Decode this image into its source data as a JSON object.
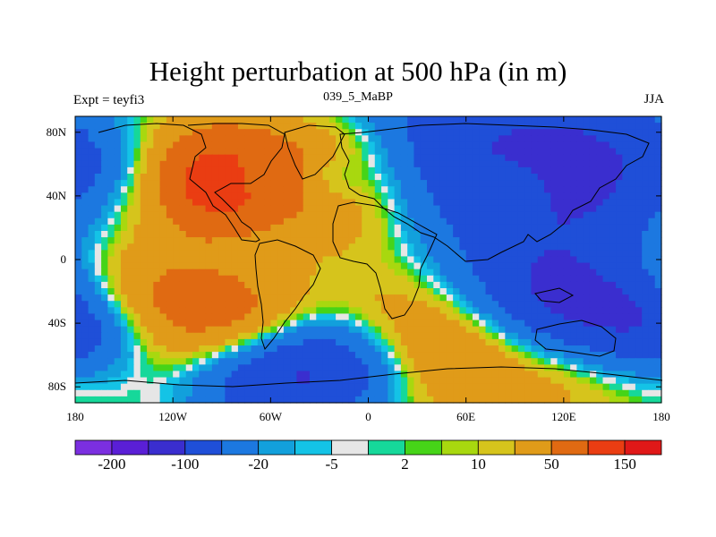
{
  "chart_data": {
    "type": "heatmap",
    "title": "Height perturbation at 500 hPa (in m)",
    "left_string": "Expt = teyfi3",
    "center_string": "039_5_MaBP",
    "right_string": "JJA",
    "x_ticks": [
      {
        "value": -180,
        "label": "180"
      },
      {
        "value": -120,
        "label": "120W"
      },
      {
        "value": -60,
        "label": "60W"
      },
      {
        "value": 0,
        "label": "0"
      },
      {
        "value": 60,
        "label": "60E"
      },
      {
        "value": 120,
        "label": "120E"
      },
      {
        "value": 180,
        "label": "180"
      }
    ],
    "y_ticks": [
      {
        "value": 80,
        "label": "80N"
      },
      {
        "value": 40,
        "label": "40N"
      },
      {
        "value": 0,
        "label": "0"
      },
      {
        "value": -40,
        "label": "40S"
      },
      {
        "value": -80,
        "label": "80S"
      }
    ],
    "xlim": [
      -180,
      180
    ],
    "ylim": [
      -90,
      90
    ],
    "colorbar": {
      "levels": [
        -200,
        -150,
        -100,
        -50,
        -20,
        -10,
        -5,
        -2,
        2,
        5,
        10,
        20,
        50,
        100,
        150,
        200
      ],
      "colors": [
        "#7b2fe0",
        "#5a1fd6",
        "#3a2ecf",
        "#1f4fd8",
        "#1c78e0",
        "#12a0dc",
        "#14c3e6",
        "#e6e6e6",
        "#16d89a",
        "#46d418",
        "#a8d80f",
        "#d6c41c",
        "#e09b19",
        "#e06a12",
        "#ea3d12",
        "#e01818"
      ],
      "labels": [
        {
          "value": -200,
          "text": "-200"
        },
        {
          "value": -100,
          "text": "-100"
        },
        {
          "value": -20,
          "text": "-20"
        },
        {
          "value": -5,
          "text": "-5"
        },
        {
          "value": 2,
          "text": "2"
        },
        {
          "value": 10,
          "text": "10"
        },
        {
          "value": 50,
          "text": "50"
        },
        {
          "value": 150,
          "text": "150"
        }
      ]
    },
    "anomaly_centers": [
      {
        "lon": -95,
        "lat": 62,
        "value": 60,
        "spread": 26
      },
      {
        "lon": -88,
        "lat": 45,
        "value": 80,
        "spread": 18
      },
      {
        "lon": -35,
        "lat": 50,
        "value": 45,
        "spread": 22
      },
      {
        "lon": -20,
        "lat": 62,
        "value": 35,
        "spread": 20
      },
      {
        "lon": 0,
        "lat": 30,
        "value": 30,
        "spread": 25
      },
      {
        "lon": -120,
        "lat": 25,
        "value": 12,
        "spread": 30
      },
      {
        "lon": -75,
        "lat": 50,
        "value": -40,
        "spread": 10
      },
      {
        "lon": -25,
        "lat": 52,
        "value": -60,
        "spread": 14
      },
      {
        "lon": -165,
        "lat": 62,
        "value": -18,
        "spread": 14
      },
      {
        "lon": 60,
        "lat": 72,
        "value": -70,
        "spread": 40
      },
      {
        "lon": 140,
        "lat": 60,
        "value": -80,
        "spread": 35
      },
      {
        "lon": 95,
        "lat": 46,
        "value": 25,
        "spread": 14
      },
      {
        "lon": 130,
        "lat": 25,
        "value": -25,
        "spread": 30
      },
      {
        "lon": 30,
        "lat": 10,
        "value": -18,
        "spread": 35
      },
      {
        "lon": -150,
        "lat": 0,
        "value": 6,
        "spread": 40
      },
      {
        "lon": -130,
        "lat": -30,
        "value": 50,
        "spread": 28
      },
      {
        "lon": -75,
        "lat": -40,
        "value": 70,
        "spread": 22
      },
      {
        "lon": -165,
        "lat": -50,
        "value": -40,
        "spread": 18
      },
      {
        "lon": -60,
        "lat": -70,
        "value": -100,
        "spread": 26
      },
      {
        "lon": -10,
        "lat": -68,
        "value": -60,
        "spread": 22
      },
      {
        "lon": 40,
        "lat": -55,
        "value": 50,
        "spread": 28
      },
      {
        "lon": 110,
        "lat": -65,
        "value": 40,
        "spread": 30
      },
      {
        "lon": 120,
        "lat": -30,
        "value": -90,
        "spread": 26
      },
      {
        "lon": 165,
        "lat": -38,
        "value": -70,
        "spread": 22
      },
      {
        "lon": 10,
        "lat": -20,
        "value": 25,
        "spread": 30
      },
      {
        "lon": 80,
        "lat": -15,
        "value": -30,
        "spread": 28
      }
    ]
  }
}
